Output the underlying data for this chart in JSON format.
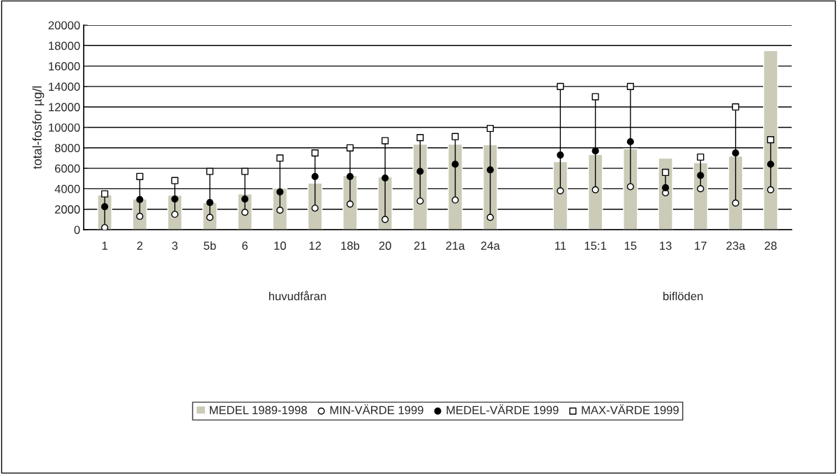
{
  "chart_data": {
    "type": "bar",
    "ylabel": "total-fosfor µg/l",
    "categories": [
      "1",
      "2",
      "3",
      "5b",
      "6",
      "10",
      "12",
      "18b",
      "20",
      "21",
      "21a",
      "24a",
      null,
      "11",
      "15:1",
      "15",
      "13",
      "17",
      "23a",
      "28"
    ],
    "series": [
      {
        "name": "MEDEL 1989-1998",
        "color": "#cbcbb8",
        "values": [
          3400,
          3000,
          3350,
          2650,
          3500,
          4050,
          4550,
          5300,
          5150,
          8350,
          8350,
          8300,
          null,
          6650,
          7350,
          7900,
          7000,
          6550,
          7200,
          17500
        ]
      },
      {
        "name": "MIN-VÄRDE 1999",
        "type": "scatter",
        "marker": "circle",
        "color": "#ffffff",
        "values": [
          200,
          1300,
          1500,
          1200,
          1700,
          1900,
          2100,
          2500,
          1000,
          2800,
          2900,
          1200,
          null,
          3800,
          3900,
          4200,
          3600,
          4000,
          2600,
          3900
        ]
      },
      {
        "name": "MEDEL-VÄRDE 1999",
        "type": "scatter",
        "marker": "circle",
        "color": "#000000",
        "values": [
          2250,
          2950,
          3000,
          2650,
          3000,
          3700,
          5200,
          5200,
          5050,
          5700,
          6400,
          5850,
          null,
          7300,
          7700,
          8600,
          4100,
          5300,
          7500,
          6400
        ]
      },
      {
        "name": "MAX-VÄRDE 1999",
        "type": "scatter",
        "marker": "square",
        "color": "#ffffff",
        "values": [
          3500,
          5200,
          4800,
          5700,
          5700,
          7000,
          7500,
          8000,
          8700,
          9000,
          9100,
          9900,
          null,
          14000,
          13000,
          14000,
          5600,
          7100,
          12000,
          8800
        ]
      }
    ],
    "ylim": [
      0,
      20000
    ],
    "yticks": [
      0,
      2000,
      4000,
      6000,
      8000,
      10000,
      12000,
      14000,
      16000,
      18000,
      20000
    ],
    "grid": "y",
    "legend": "bottom",
    "annotations": [
      "huvudfåran",
      "biflöden"
    ]
  }
}
